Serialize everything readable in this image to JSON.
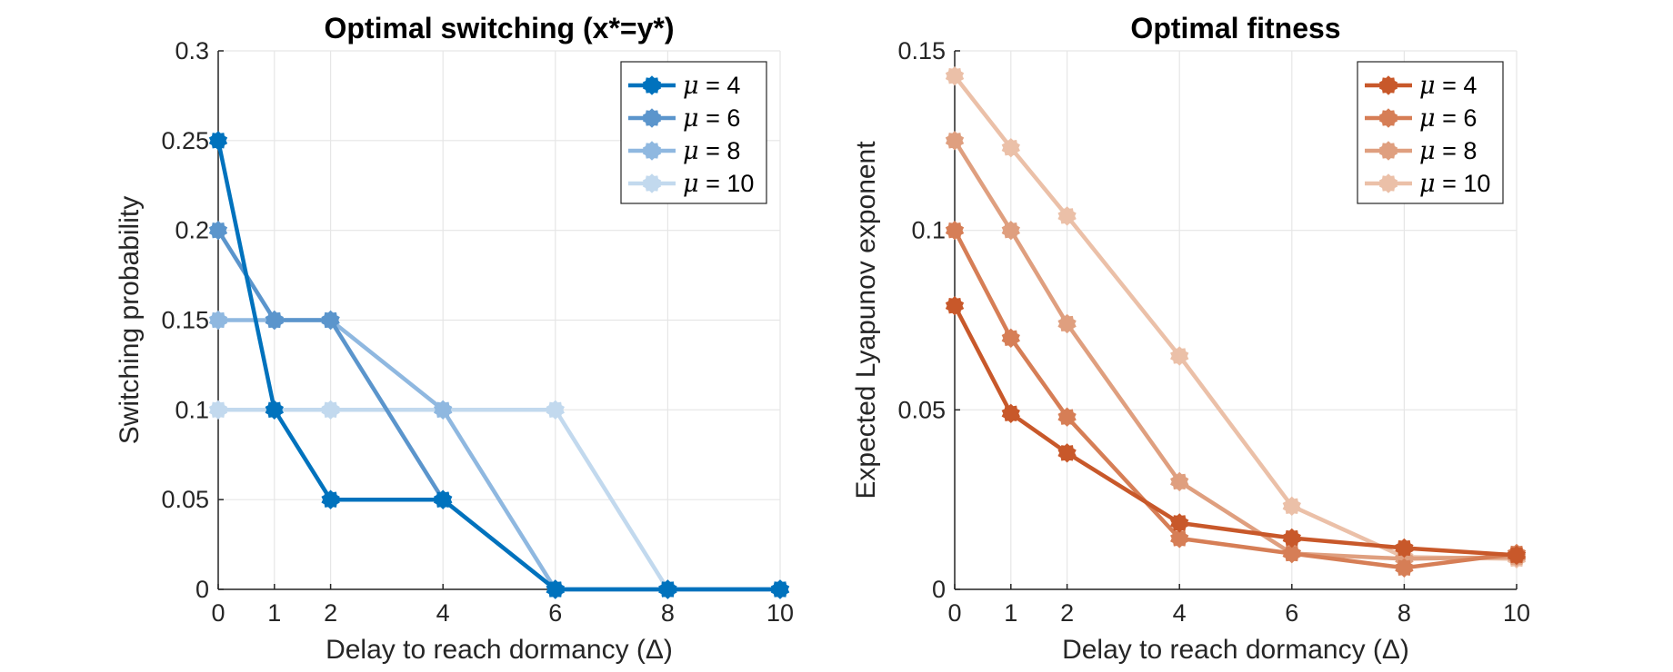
{
  "chart_data": [
    {
      "type": "line",
      "title": "Optimal switching (x*=y*)",
      "xlabel": "Delay to reach dormancy (Δ)",
      "ylabel": "Switching probability",
      "xlim": [
        0,
        10
      ],
      "ylim": [
        0,
        0.3
      ],
      "xticks": [
        0,
        1,
        2,
        4,
        6,
        8,
        10
      ],
      "xtick_labels": [
        "0",
        "1",
        "2",
        "4",
        "6",
        "8",
        "10"
      ],
      "yticks": [
        0,
        0.05,
        0.1,
        0.15,
        0.2,
        0.25,
        0.3
      ],
      "ytick_labels": [
        "0",
        "0.05",
        "0.1",
        "0.15",
        "0.2",
        "0.25",
        "0.3"
      ],
      "grid": true,
      "legend_position": "top-right",
      "x": [
        0,
        1,
        2,
        4,
        6,
        8,
        10
      ],
      "series": [
        {
          "name": "μ = 4",
          "color": "#0072bd",
          "values": [
            0.25,
            0.1,
            0.05,
            0.05,
            0,
            0,
            0
          ]
        },
        {
          "name": "μ = 6",
          "color": "#5b95cc",
          "values": [
            0.2,
            0.15,
            0.15,
            0.05,
            0,
            0,
            0
          ]
        },
        {
          "name": "μ = 8",
          "color": "#8fb8e0",
          "values": [
            0.15,
            0.15,
            0.15,
            0.1,
            0,
            0,
            0
          ]
        },
        {
          "name": "μ = 10",
          "color": "#c2d9ee",
          "values": [
            0.1,
            0.1,
            0.1,
            0.1,
            0.1,
            0,
            0
          ]
        }
      ]
    },
    {
      "type": "line",
      "title": "Optimal fitness",
      "xlabel": "Delay to reach dormancy (Δ)",
      "ylabel": "Expected Lyapunov exponent",
      "xlim": [
        0,
        10
      ],
      "ylim": [
        0,
        0.15
      ],
      "xticks": [
        0,
        1,
        2,
        4,
        6,
        8,
        10
      ],
      "xtick_labels": [
        "0",
        "1",
        "2",
        "4",
        "6",
        "8",
        "10"
      ],
      "yticks": [
        0,
        0.05,
        0.1,
        0.15
      ],
      "ytick_labels": [
        "0",
        "0.05",
        "0.1",
        "0.15"
      ],
      "grid": true,
      "legend_position": "top-right",
      "x": [
        0,
        1,
        2,
        4,
        6,
        8,
        10
      ],
      "series": [
        {
          "name": "μ = 4",
          "color": "#c8582a",
          "values": [
            0.079,
            0.049,
            0.038,
            0.0185,
            0.0143,
            0.0115,
            0.0095
          ]
        },
        {
          "name": "μ = 6",
          "color": "#d67e56",
          "values": [
            0.1,
            0.07,
            0.048,
            0.0142,
            0.01,
            0.006,
            0.01
          ]
        },
        {
          "name": "μ = 8",
          "color": "#df9f7f",
          "values": [
            0.125,
            0.1,
            0.074,
            0.03,
            0.01,
            0.0085,
            0.009
          ]
        },
        {
          "name": "μ = 10",
          "color": "#ebc0a8",
          "values": [
            0.143,
            0.123,
            0.104,
            0.065,
            0.0232,
            0.009,
            0.0085
          ]
        }
      ]
    }
  ]
}
